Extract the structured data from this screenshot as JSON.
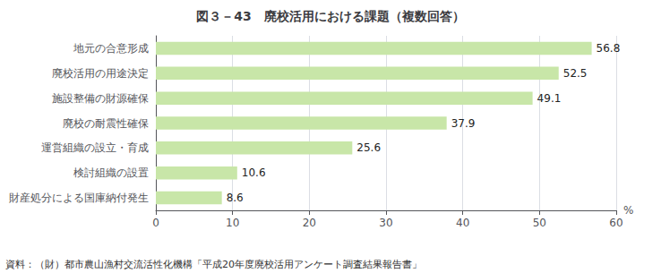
{
  "chart_data": {
    "type": "bar",
    "orientation": "horizontal",
    "title": "図３－43　廃校活用における課題（複数回答）",
    "categories": [
      "財産処分による国庫納付発生",
      "検討組織の設置",
      "運営組織の設立・育成",
      "廃校の耐震性確保",
      "施設整備の財源確保",
      "廃校活用の用途決定",
      "地元の合意形成"
    ],
    "values": [
      8.6,
      10.6,
      25.6,
      37.9,
      49.1,
      52.5,
      56.8
    ],
    "color": "#c8e6a8",
    "xlabel": "%",
    "xlim": [
      0,
      60
    ],
    "xticks": [
      0,
      10,
      20,
      30,
      40,
      50,
      60
    ],
    "grid": true,
    "data_labels": true,
    "annotations": [
      "資料：（財）都市農山漁村交流活性化機構「平成20年度廃校活用アンケート調査結果報告書」"
    ]
  }
}
